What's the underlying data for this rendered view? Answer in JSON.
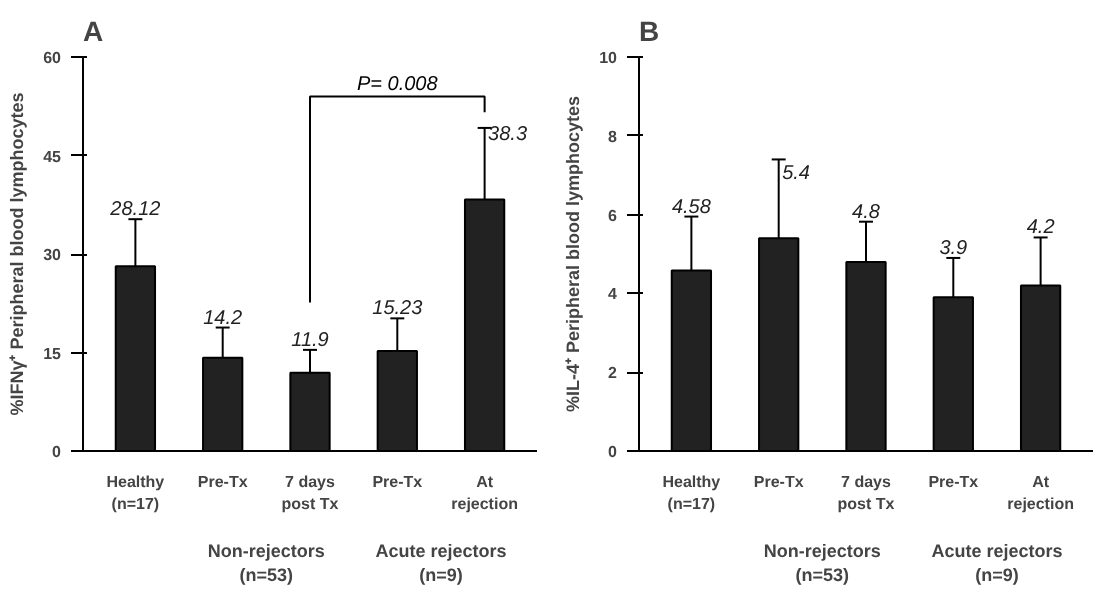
{
  "chart_data": [
    {
      "type": "bar",
      "title": "A",
      "ylabel": "%IFNγ⁺ Peripheral blood lymphocytes",
      "categories": [
        "Healthy\n(n=17)",
        "Pre-Tx",
        "7 days\npost Tx",
        "Pre-Tx",
        "At\nrejection"
      ],
      "values": [
        28.12,
        14.2,
        11.9,
        15.23,
        38.3
      ],
      "value_labels": [
        "28.12",
        "14.2",
        "11.9",
        "15.23",
        "38.3"
      ],
      "errors": [
        [
          28.12,
          35.3
        ],
        [
          14.2,
          18.8
        ],
        [
          11.9,
          15.4
        ],
        [
          15.23,
          20.2
        ],
        [
          38.3,
          49.2
        ]
      ],
      "color": "#222222",
      "ylim": [
        0,
        60
      ],
      "yticks": [
        0,
        15,
        30,
        45,
        60
      ],
      "grid": false,
      "annotations": [
        "P= 0.008",
        "Non-rejectors\n(n=53)",
        "Acute rejectors\n(n=9)"
      ]
    },
    {
      "type": "bar",
      "title": "B",
      "ylabel": "%IL-4⁺ Peripheral blood lymphocytes",
      "categories": [
        "Healthy\n(n=17)",
        "Pre-Tx",
        "7 days\npost Tx",
        "Pre-Tx",
        "At\nrejection"
      ],
      "values": [
        4.58,
        5.4,
        4.8,
        3.9,
        4.2
      ],
      "value_labels": [
        "4.58",
        "5.4",
        "4.8",
        "3.9",
        "4.2"
      ],
      "errors": [
        [
          4.58,
          5.95
        ],
        [
          5.4,
          7.4
        ],
        [
          4.8,
          5.82
        ],
        [
          3.9,
          4.9
        ],
        [
          4.2,
          5.42
        ]
      ],
      "color": "#222222",
      "ylim": [
        0,
        10
      ],
      "yticks": [
        0,
        2,
        4,
        6,
        8,
        10
      ],
      "grid": false,
      "annotations": [
        "Non-rejectors\n(n=53)",
        "Acute rejectors\n(n=9)"
      ]
    }
  ]
}
